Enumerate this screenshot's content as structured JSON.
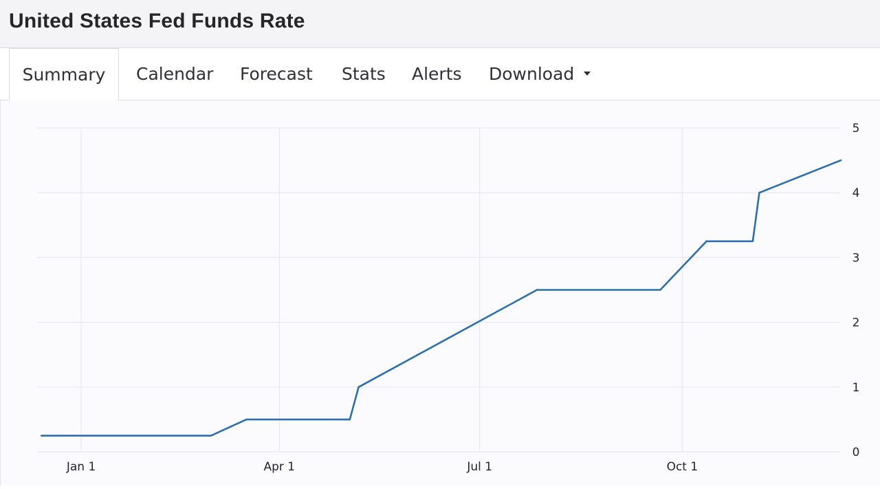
{
  "header": {
    "title": "United States Fed Funds Rate"
  },
  "tabs": [
    {
      "label": "Summary",
      "active": true
    },
    {
      "label": "Calendar",
      "active": false
    },
    {
      "label": "Forecast",
      "active": false
    },
    {
      "label": "Stats",
      "active": false
    },
    {
      "label": "Alerts",
      "active": false
    },
    {
      "label": "Download",
      "active": false,
      "dropdown": true
    }
  ],
  "colors": {
    "line": "#2a6fb0",
    "grid": "#e3e6ee",
    "axis_text": "#222233"
  },
  "chart_data": {
    "type": "line",
    "title": "",
    "xlabel": "",
    "ylabel": "",
    "grid": true,
    "yaxis_position": "right",
    "xlim": [
      "2021-12-12",
      "2022-12-12"
    ],
    "ylim": [
      0,
      5
    ],
    "yticks": [
      0,
      1,
      2,
      3,
      4,
      5
    ],
    "xticks": [
      {
        "date": "2022-01-01",
        "label": "Jan 1"
      },
      {
        "date": "2022-04-01",
        "label": "Apr 1"
      },
      {
        "date": "2022-07-01",
        "label": "Jul 1"
      },
      {
        "date": "2022-10-01",
        "label": "Oct 1"
      }
    ],
    "series": [
      {
        "x": [
          "2021-12-14",
          "2022-03-01",
          "2022-03-17",
          "2022-05-03",
          "2022-05-07",
          "2022-07-27",
          "2022-09-21",
          "2022-10-12",
          "2022-11-02",
          "2022-11-05",
          "2022-12-12"
        ],
        "values": [
          0.25,
          0.25,
          0.5,
          0.5,
          1.0,
          2.5,
          2.5,
          3.25,
          3.25,
          4.0,
          4.5
        ]
      }
    ]
  }
}
